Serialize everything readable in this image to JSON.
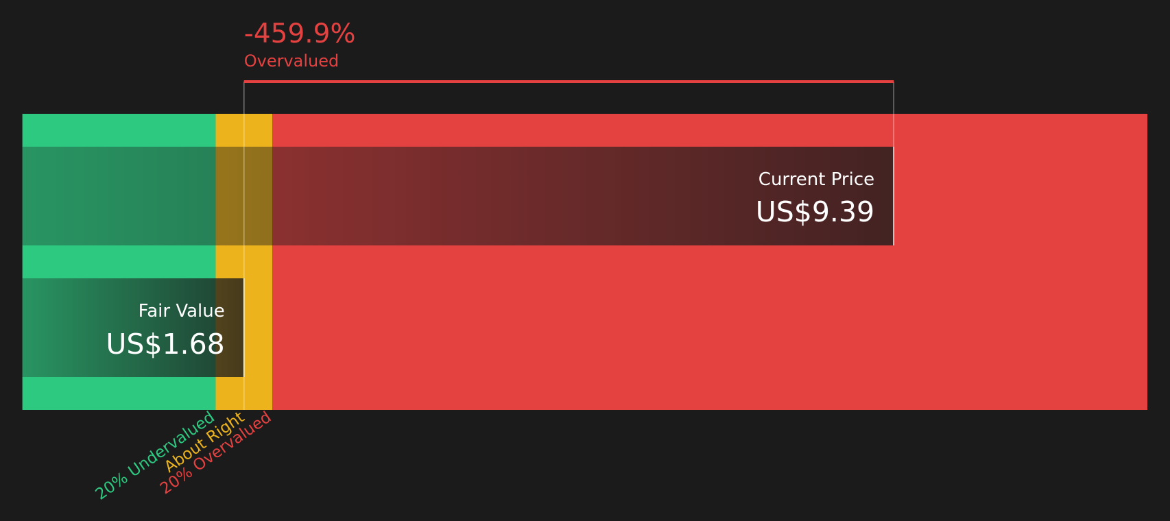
{
  "chart_data": {
    "type": "bar",
    "title": "",
    "headline": {
      "value": "-459.9%",
      "label": "Overvalued"
    },
    "fair_value": {
      "label": "Fair Value",
      "value": 1.68,
      "display": "US$1.68"
    },
    "current_price": {
      "label": "Current Price",
      "value": 9.39,
      "display": "US$9.39"
    },
    "zones": [
      {
        "name": "20% Undervalued",
        "from": -0.95,
        "to": 1.344,
        "color": "#2ec981"
      },
      {
        "name": "About Right",
        "from": 1.344,
        "to": 2.016,
        "color": "#ecb31d"
      },
      {
        "name": "20% Overvalued",
        "from": 2.016,
        "to": 12.4,
        "color": "#e44141"
      }
    ],
    "xlim": [
      -0.95,
      12.4
    ],
    "grid": false
  },
  "colors": {
    "background": "#1b1b1b",
    "accent_red": "#e44141",
    "green": "#2ec981",
    "yellow": "#ecb31d"
  }
}
